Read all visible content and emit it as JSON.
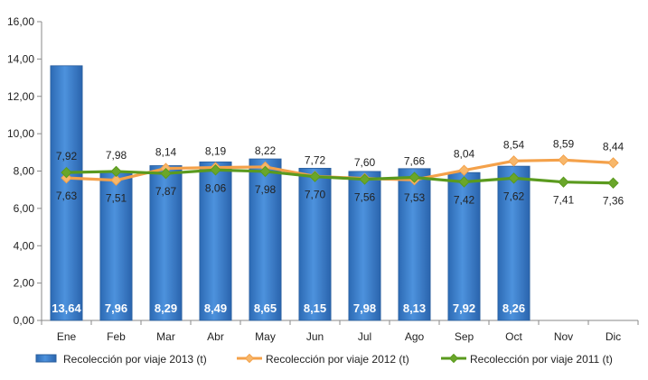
{
  "chart_data": {
    "type": "bar",
    "categories": [
      "Ene",
      "Feb",
      "Mar",
      "Abr",
      "May",
      "Jun",
      "Jul",
      "Ago",
      "Sep",
      "Oct",
      "Nov",
      "Dic"
    ],
    "ylim": [
      0,
      16
    ],
    "ytick_step": 2,
    "grid": false,
    "legend_position": "bottom",
    "series": [
      {
        "name": "Recolección por viaje 2013 (t)",
        "kind": "bar",
        "color": "#3a7ec8",
        "values": [
          13.64,
          7.96,
          8.29,
          8.49,
          8.65,
          8.15,
          7.98,
          8.13,
          7.92,
          8.26,
          null,
          null
        ],
        "labels": [
          "13,64",
          "7,96",
          "8,29",
          "8,49",
          "8,65",
          "8,15",
          "7,98",
          "8,13",
          "7,92",
          "8,26",
          "",
          ""
        ]
      },
      {
        "name": "Recolección por viaje 2012 (t)",
        "kind": "line",
        "color": "#f4a14a",
        "marker_color": "#f7b76b",
        "values": [
          7.63,
          7.51,
          8.14,
          8.19,
          8.22,
          7.72,
          7.6,
          7.53,
          8.04,
          8.54,
          8.59,
          8.44
        ],
        "labels": [
          "7,63",
          "7,51",
          "8,14",
          "8,19",
          "8,22",
          "7,72",
          "7,60",
          "7,53",
          "8,04",
          "8,54",
          "8,59",
          "8,44"
        ]
      },
      {
        "name": "Recolección por viaje 2011 (t)",
        "kind": "line",
        "color": "#5a9a1e",
        "marker_color": "#6aa62a",
        "values": [
          7.92,
          7.98,
          7.87,
          8.06,
          7.98,
          7.7,
          7.56,
          7.66,
          7.42,
          7.62,
          7.41,
          7.36
        ],
        "labels": [
          "7,92",
          "7,98",
          "7,87",
          "8,06",
          "7,98",
          "7,70",
          "7,56",
          "7,66",
          "7,42",
          "7,62",
          "7,41",
          "7,36"
        ]
      }
    ],
    "label_positions": {
      "2012": [
        "below",
        "below",
        "above",
        "above",
        "above",
        "above",
        "above",
        "below",
        "above",
        "above",
        "above",
        "above"
      ],
      "2011": [
        "above",
        "above",
        "below",
        "below",
        "below",
        "below",
        "below",
        "above",
        "below",
        "below",
        "below",
        "below"
      ]
    }
  }
}
